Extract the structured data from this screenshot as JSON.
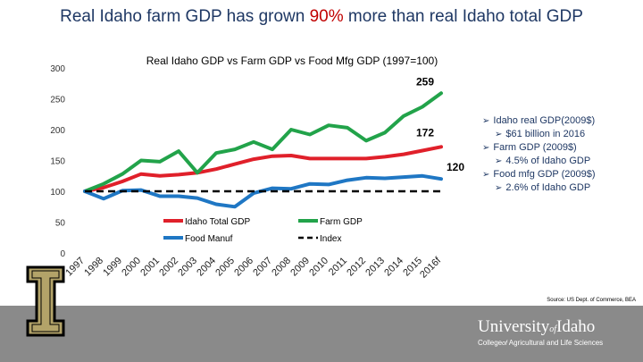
{
  "header": {
    "title_pre": "Real Idaho farm GDP has grown ",
    "title_highlight": "90%",
    "title_post": " more than real Idaho total GDP"
  },
  "chart_data": {
    "type": "line",
    "title": "Real Idaho GDP vs Farm GDP vs Food Mfg GDP (1997=100)",
    "categories": [
      "1997",
      "1998",
      "1999",
      "2000",
      "2001",
      "2002",
      "2003",
      "2004",
      "2005",
      "2006",
      "2007",
      "2008",
      "2009",
      "2010",
      "2011",
      "2012",
      "2013",
      "2014",
      "2015",
      "2016f"
    ],
    "ylim": [
      0,
      300
    ],
    "yticks": [
      "0",
      "50",
      "100",
      "150",
      "200",
      "250",
      "300"
    ],
    "legend_position": "bottom-center",
    "series": [
      {
        "name": "Idaho Total GDP",
        "color": "#e0202a",
        "values": [
          100,
          106,
          116,
          128,
          125,
          127,
          130,
          136,
          144,
          152,
          157,
          158,
          153,
          153,
          153,
          153,
          156,
          160,
          166,
          172
        ],
        "end_label": "172"
      },
      {
        "name": "Farm GDP",
        "color": "#22a34a",
        "values": [
          100,
          112,
          128,
          150,
          148,
          165,
          130,
          162,
          168,
          180,
          168,
          200,
          192,
          207,
          203,
          182,
          195,
          222,
          237,
          259
        ],
        "end_label": "259"
      },
      {
        "name": "Food Manuf",
        "color": "#1f77c4",
        "values": [
          100,
          88,
          101,
          102,
          92,
          92,
          89,
          79,
          75,
          97,
          105,
          104,
          112,
          111,
          118,
          122,
          121,
          123,
          125,
          120
        ],
        "end_label": "120"
      },
      {
        "name": "Index",
        "color": "#000000",
        "dashed": true,
        "values": [
          100,
          100,
          100,
          100,
          100,
          100,
          100,
          100,
          100,
          100,
          100,
          100,
          100,
          100,
          100,
          100,
          100,
          100,
          100,
          100
        ]
      }
    ]
  },
  "notes": [
    {
      "level": 1,
      "text": "Idaho real GDP(2009$)"
    },
    {
      "level": 2,
      "text": "$61 billion in 2016"
    },
    {
      "level": 1,
      "text": "Farm GDP (2009$)"
    },
    {
      "level": 2,
      "text": "4.5% of Idaho GDP"
    },
    {
      "level": 1,
      "text": "Food mfg GDP (2009$)"
    },
    {
      "level": 2,
      "text": "2.6% of Idaho GDP"
    }
  ],
  "source": "Source: US Dept. of Commerce, BEA",
  "footer": {
    "logo_letter": "I",
    "university_pre": "University",
    "university_of": "of",
    "university_post": "Idaho",
    "college_pre": "College",
    "college_of": "of",
    "college_post": " Agricultural and Life Sciences"
  },
  "colors": {
    "title": "#1f3864",
    "highlight": "#c00000",
    "footer": "#8a8a8a",
    "logo_gold": "#b3a369"
  }
}
